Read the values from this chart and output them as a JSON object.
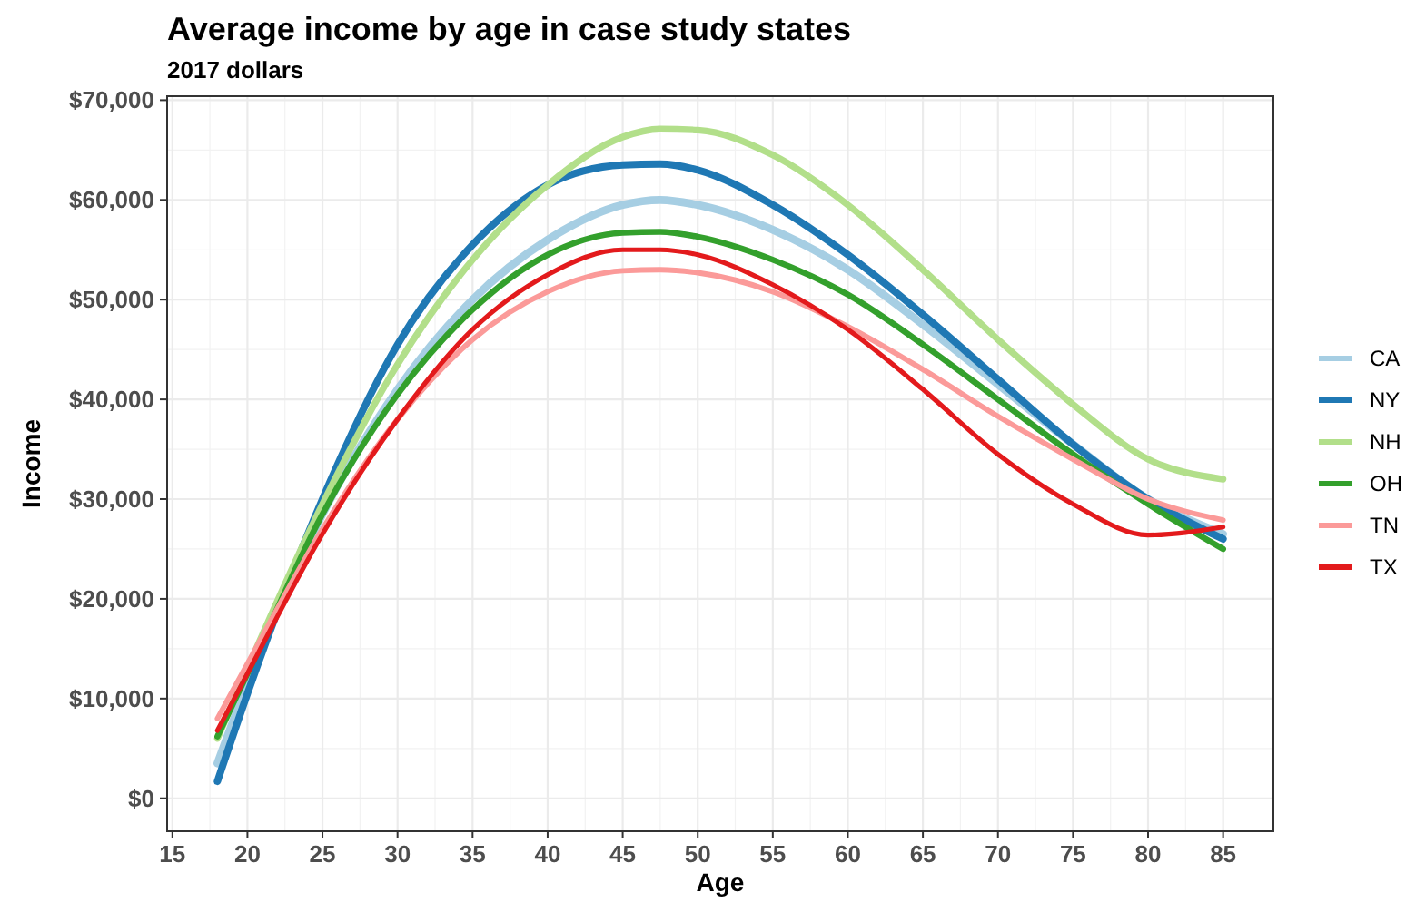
{
  "chart_data": {
    "type": "line",
    "title": "Average income by age in case study states",
    "subtitle": "2017 dollars",
    "xlabel": "Age",
    "ylabel": "Income",
    "x": [
      18,
      20,
      25,
      30,
      35,
      40,
      45,
      47.5,
      50,
      55,
      60,
      65,
      70,
      75,
      80,
      85
    ],
    "series": [
      {
        "name": "CA",
        "color": "#a6cee3",
        "values": [
          3500,
          11500,
          28500,
          41000,
          50000,
          56000,
          59500,
          60000,
          59500,
          57000,
          53000,
          47500,
          41500,
          35500,
          30000,
          26500
        ]
      },
      {
        "name": "NY",
        "color": "#1f78b4",
        "values": [
          1700,
          10500,
          30000,
          45500,
          55500,
          61500,
          63500,
          63600,
          63000,
          59500,
          54500,
          48500,
          42000,
          35500,
          30000,
          26000
        ]
      },
      {
        "name": "NH",
        "color": "#b2df8a",
        "values": [
          6000,
          13000,
          29500,
          43500,
          54000,
          61500,
          66300,
          67100,
          67000,
          64500,
          59500,
          53000,
          46000,
          39500,
          34000,
          32000
        ]
      },
      {
        "name": "OH",
        "color": "#33a02c",
        "values": [
          6200,
          12500,
          28500,
          40500,
          49000,
          54500,
          56700,
          56800,
          56300,
          54000,
          50500,
          45500,
          40000,
          34500,
          29500,
          25000
        ]
      },
      {
        "name": "TN",
        "color": "#fb9a99",
        "values": [
          8000,
          13500,
          27000,
          38000,
          46000,
          50800,
          52900,
          53000,
          52700,
          50800,
          47300,
          43000,
          38300,
          34000,
          30000,
          27900
        ]
      },
      {
        "name": "TX",
        "color": "#e31a1c",
        "values": [
          6800,
          12500,
          26500,
          38000,
          47000,
          52500,
          55000,
          55000,
          54500,
          51500,
          47000,
          41000,
          34500,
          29500,
          26400,
          27200
        ]
      }
    ],
    "xlim": [
      14.65,
      88.35
    ],
    "xticks": [
      15,
      20,
      25,
      30,
      35,
      40,
      45,
      50,
      55,
      60,
      65,
      70,
      75,
      80,
      85
    ],
    "ylim": [
      -3300,
      70400
    ],
    "yticks": [
      {
        "value": 0,
        "label": "$0"
      },
      {
        "value": 10000,
        "label": "$10,000"
      },
      {
        "value": 20000,
        "label": "$20,000"
      },
      {
        "value": 30000,
        "label": "$30,000"
      },
      {
        "value": 40000,
        "label": "$40,000"
      },
      {
        "value": 50000,
        "label": "$50,000"
      },
      {
        "value": 60000,
        "label": "$60,000"
      },
      {
        "value": 70000,
        "label": "$70,000"
      }
    ],
    "grid": true,
    "legend": "right",
    "marker": "none",
    "line_style": "solid"
  }
}
